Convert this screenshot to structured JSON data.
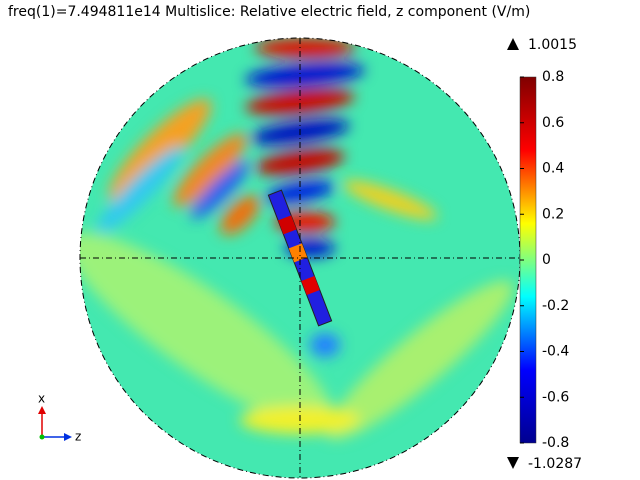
{
  "chart_data": {
    "type": "field",
    "title": "freq(1)=7.494811e14   Multislice: Relative electric field, z component (V/m)",
    "colormap": [
      "#00008f",
      "#0000ff",
      "#00ffff",
      "#ffff00",
      "#ff0000",
      "#800000"
    ],
    "clim": [
      -0.8,
      0.8
    ],
    "cticks": [
      -0.8,
      -0.6,
      -0.4,
      -0.2,
      0,
      0.2,
      0.4,
      0.6,
      0.8
    ],
    "max": 1.0015,
    "min": -1.0287,
    "axis_labels": [
      "x",
      "z"
    ]
  }
}
